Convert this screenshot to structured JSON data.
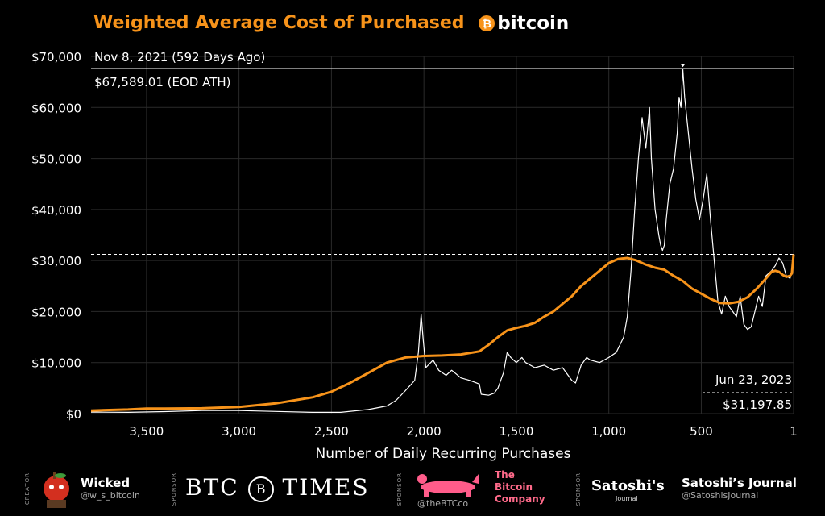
{
  "title": "Weighted Average Cost of Purchased",
  "logo_word": "bitcoin",
  "colors": {
    "accent": "#f7931a",
    "price_line": "#ffffff",
    "background": "#000000",
    "pink": "#ff6a8a"
  },
  "chart_data": {
    "type": "line",
    "xlabel": "Number of Daily Recurring Purchases",
    "ylabel": "",
    "x_reversed": true,
    "xlim": [
      3800,
      1
    ],
    "ylim": [
      0,
      70000
    ],
    "grid": true,
    "y_ticks": [
      "$0",
      "$10,000",
      "$20,000",
      "$30,000",
      "$40,000",
      "$50,000",
      "$60,000",
      "$70,000"
    ],
    "x_ticks": [
      "3,500",
      "3,000",
      "2,500",
      "2,000",
      "1,500",
      "1,000",
      "500",
      "1"
    ],
    "series": [
      {
        "name": "BTC price",
        "color": "#ffffff",
        "points": [
          [
            3800,
            300
          ],
          [
            3600,
            250
          ],
          [
            3400,
            400
          ],
          [
            3200,
            600
          ],
          [
            3000,
            600
          ],
          [
            2800,
            430
          ],
          [
            2600,
            250
          ],
          [
            2450,
            250
          ],
          [
            2300,
            800
          ],
          [
            2200,
            1500
          ],
          [
            2150,
            2600
          ],
          [
            2100,
            4500
          ],
          [
            2050,
            6500
          ],
          [
            2030,
            12000
          ],
          [
            2020,
            17000
          ],
          [
            2015,
            19500
          ],
          [
            2005,
            15000
          ],
          [
            1990,
            9000
          ],
          [
            1950,
            10500
          ],
          [
            1920,
            8500
          ],
          [
            1880,
            7500
          ],
          [
            1850,
            8500
          ],
          [
            1800,
            7000
          ],
          [
            1750,
            6500
          ],
          [
            1700,
            5800
          ],
          [
            1690,
            3800
          ],
          [
            1650,
            3600
          ],
          [
            1620,
            4000
          ],
          [
            1600,
            5000
          ],
          [
            1570,
            8000
          ],
          [
            1550,
            12000
          ],
          [
            1530,
            11000
          ],
          [
            1500,
            10000
          ],
          [
            1470,
            11000
          ],
          [
            1450,
            10000
          ],
          [
            1400,
            9000
          ],
          [
            1350,
            9500
          ],
          [
            1300,
            8500
          ],
          [
            1250,
            9000
          ],
          [
            1200,
            6500
          ],
          [
            1180,
            6000
          ],
          [
            1150,
            9500
          ],
          [
            1120,
            11000
          ],
          [
            1100,
            10500
          ],
          [
            1050,
            10000
          ],
          [
            1000,
            11000
          ],
          [
            960,
            12000
          ],
          [
            920,
            15000
          ],
          [
            900,
            19000
          ],
          [
            880,
            28000
          ],
          [
            860,
            40000
          ],
          [
            840,
            50000
          ],
          [
            820,
            58000
          ],
          [
            800,
            52000
          ],
          [
            780,
            60000
          ],
          [
            770,
            50000
          ],
          [
            750,
            40000
          ],
          [
            730,
            35000
          ],
          [
            720,
            33000
          ],
          [
            710,
            32000
          ],
          [
            700,
            33000
          ],
          [
            690,
            38000
          ],
          [
            670,
            45000
          ],
          [
            650,
            48000
          ],
          [
            630,
            55000
          ],
          [
            620,
            62000
          ],
          [
            610,
            60000
          ],
          [
            600,
            67589
          ],
          [
            590,
            62000
          ],
          [
            570,
            55000
          ],
          [
            550,
            48000
          ],
          [
            530,
            42000
          ],
          [
            510,
            38000
          ],
          [
            490,
            42000
          ],
          [
            470,
            47000
          ],
          [
            450,
            38000
          ],
          [
            430,
            30000
          ],
          [
            410,
            22000
          ],
          [
            390,
            19500
          ],
          [
            370,
            23000
          ],
          [
            350,
            21000
          ],
          [
            330,
            20000
          ],
          [
            310,
            19000
          ],
          [
            290,
            23000
          ],
          [
            270,
            17500
          ],
          [
            250,
            16500
          ],
          [
            230,
            17000
          ],
          [
            210,
            20000
          ],
          [
            190,
            23000
          ],
          [
            170,
            21000
          ],
          [
            150,
            27000
          ],
          [
            120,
            28000
          ],
          [
            100,
            29000
          ],
          [
            80,
            30500
          ],
          [
            60,
            29500
          ],
          [
            40,
            27000
          ],
          [
            20,
            26500
          ],
          [
            10,
            28000
          ],
          [
            1,
            31198
          ]
        ]
      },
      {
        "name": "Weighted average cost",
        "color": "#f7931a",
        "points": [
          [
            3800,
            600
          ],
          [
            3600,
            800
          ],
          [
            3500,
            1000
          ],
          [
            3400,
            1000
          ],
          [
            3200,
            1050
          ],
          [
            3000,
            1300
          ],
          [
            2800,
            2000
          ],
          [
            2600,
            3200
          ],
          [
            2500,
            4300
          ],
          [
            2400,
            6000
          ],
          [
            2300,
            8000
          ],
          [
            2200,
            10000
          ],
          [
            2100,
            11000
          ],
          [
            2000,
            11300
          ],
          [
            1900,
            11400
          ],
          [
            1800,
            11600
          ],
          [
            1700,
            12200
          ],
          [
            1650,
            13500
          ],
          [
            1600,
            15000
          ],
          [
            1550,
            16300
          ],
          [
            1500,
            16800
          ],
          [
            1450,
            17200
          ],
          [
            1400,
            17800
          ],
          [
            1350,
            19000
          ],
          [
            1300,
            20000
          ],
          [
            1250,
            21500
          ],
          [
            1200,
            23000
          ],
          [
            1150,
            25000
          ],
          [
            1100,
            26500
          ],
          [
            1050,
            28000
          ],
          [
            1000,
            29500
          ],
          [
            950,
            30300
          ],
          [
            900,
            30500
          ],
          [
            850,
            30000
          ],
          [
            800,
            29200
          ],
          [
            750,
            28600
          ],
          [
            700,
            28200
          ],
          [
            650,
            27000
          ],
          [
            600,
            26000
          ],
          [
            550,
            24500
          ],
          [
            500,
            23500
          ],
          [
            450,
            22500
          ],
          [
            400,
            21700
          ],
          [
            350,
            21600
          ],
          [
            300,
            21900
          ],
          [
            250,
            22800
          ],
          [
            200,
            24500
          ],
          [
            150,
            26500
          ],
          [
            120,
            27800
          ],
          [
            100,
            28000
          ],
          [
            80,
            27800
          ],
          [
            60,
            27200
          ],
          [
            40,
            26800
          ],
          [
            20,
            27000
          ],
          [
            10,
            27500
          ],
          [
            1,
            31198
          ]
        ]
      }
    ],
    "annotations": [
      {
        "date": "Nov 8, 2021 (592 Days Ago)",
        "value_label": "$67,589.01 (EOD ATH)",
        "y": 67589.01
      },
      {
        "date": "Jun 23, 2023",
        "value_label": "$31,197.85",
        "y": 31197.85
      }
    ]
  },
  "footer": {
    "creator_label": "CREATOR",
    "creator_name": "Wicked",
    "creator_handle": "@w_s_bitcoin",
    "sponsor_label": "SPONSOR",
    "btc_times_left": "BTC",
    "btc_times_mark": "B",
    "btc_times_right": "TIMES",
    "bitcoin_company_lines": [
      "The",
      "Bitcoin",
      "Company"
    ],
    "bitcoin_company_handle": "@theBTCco",
    "satoshi_logo_text": "Satoshi's",
    "satoshi_logo_sub": "Journal",
    "satoshi_name": "Satoshi’s Journal",
    "satoshi_handle": "@SatoshisJournal"
  }
}
